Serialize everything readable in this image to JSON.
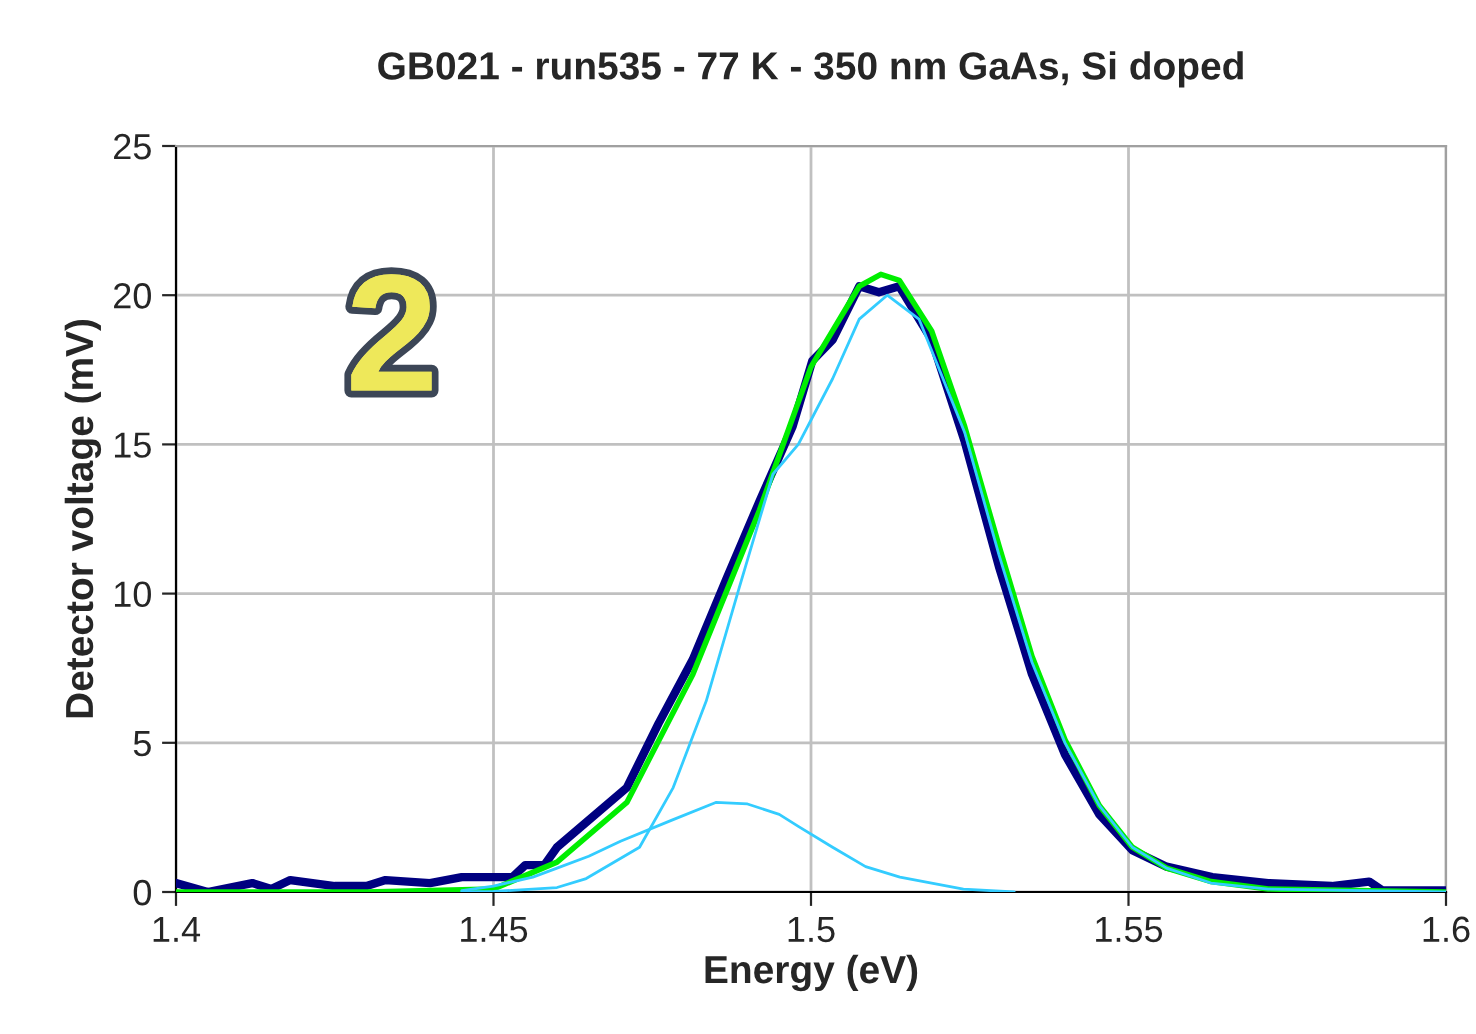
{
  "chart_data": {
    "type": "line",
    "title": "GB021 - run535 - 77 K - 350 nm GaAs, Si doped",
    "xlabel": "Energy (eV)",
    "ylabel": "Detector voltage (mV)",
    "annotations": [
      "2"
    ],
    "series": [
      {
        "color": "#33ccff",
        "x": [
          1.445,
          1.45,
          1.4562,
          1.46,
          1.465,
          1.47,
          1.478,
          1.485,
          1.49,
          1.495,
          1.498,
          1.5034,
          1.5086,
          1.514,
          1.519,
          1.524,
          1.532
        ],
        "values": [
          0.05,
          0.2,
          0.5,
          0.8,
          1.2,
          1.7,
          2.4,
          3.0,
          2.95,
          2.6,
          2.2,
          1.5,
          0.85,
          0.5,
          0.3,
          0.1,
          0
        ]
      },
      {
        "color": "#33ccff",
        "x": [
          1.445,
          1.45,
          1.46,
          1.4646,
          1.473,
          1.4783,
          1.4835,
          1.4887,
          1.494,
          1.498,
          1.5034,
          1.5076,
          1.512,
          1.517,
          1.5242,
          1.5296,
          1.5348,
          1.54,
          1.5454,
          1.5506,
          1.556,
          1.563,
          1.572,
          1.6
        ],
        "values": [
          0,
          0.02,
          0.15,
          0.45,
          1.5,
          3.5,
          6.4,
          10.2,
          14.0,
          15.0,
          17.2,
          19.2,
          20.0,
          19.2,
          15.4,
          11.3,
          7.7,
          5.0,
          2.9,
          1.5,
          0.8,
          0.3,
          0.1,
          0
        ]
      },
      {
        "color": "#000080",
        "x": [
          1.4,
          1.405,
          1.412,
          1.415,
          1.418,
          1.425,
          1.43,
          1.433,
          1.44,
          1.445,
          1.45,
          1.453,
          1.455,
          1.458,
          1.46,
          1.471,
          1.476,
          1.4814,
          1.4866,
          1.4919,
          1.4971,
          1.5002,
          1.5034,
          1.5076,
          1.5107,
          1.5139,
          1.519,
          1.5242,
          1.5296,
          1.5348,
          1.54,
          1.5454,
          1.5506,
          1.556,
          1.5632,
          1.572,
          1.582,
          1.5879,
          1.59,
          1.6
        ],
        "values": [
          0.3,
          0.0,
          0.3,
          0.1,
          0.4,
          0.2,
          0.2,
          0.4,
          0.3,
          0.5,
          0.5,
          0.5,
          0.9,
          0.9,
          1.5,
          3.5,
          5.65,
          7.8,
          10.45,
          13.1,
          15.6,
          17.8,
          18.5,
          20.3,
          20.1,
          20.3,
          18.5,
          15.1,
          10.9,
          7.3,
          4.6,
          2.6,
          1.4,
          0.85,
          0.5,
          0.3,
          0.2,
          0.35,
          0.05,
          0.05
        ]
      },
      {
        "color": "#00ee00",
        "x": [
          1.4,
          1.43,
          1.45,
          1.46,
          1.471,
          1.4814,
          1.4919,
          1.5,
          1.5076,
          1.511,
          1.5139,
          1.519,
          1.5242,
          1.5296,
          1.5348,
          1.54,
          1.5454,
          1.5506,
          1.556,
          1.563,
          1.572,
          1.6
        ],
        "values": [
          0,
          0,
          0.1,
          1.0,
          3.0,
          7.3,
          12.8,
          17.6,
          20.3,
          20.7,
          20.5,
          18.8,
          15.6,
          11.6,
          7.9,
          5.1,
          2.9,
          1.5,
          0.8,
          0.35,
          0.1,
          0
        ]
      }
    ],
    "xlim": [
      1.4,
      1.6
    ],
    "xticks": [
      1.4,
      1.45,
      1.5,
      1.55,
      1.6
    ],
    "ylim": [
      0,
      25
    ],
    "yticks": [
      0,
      5,
      10,
      15,
      20,
      25
    ],
    "grid": true,
    "marker": "none",
    "line_style": "solid"
  }
}
